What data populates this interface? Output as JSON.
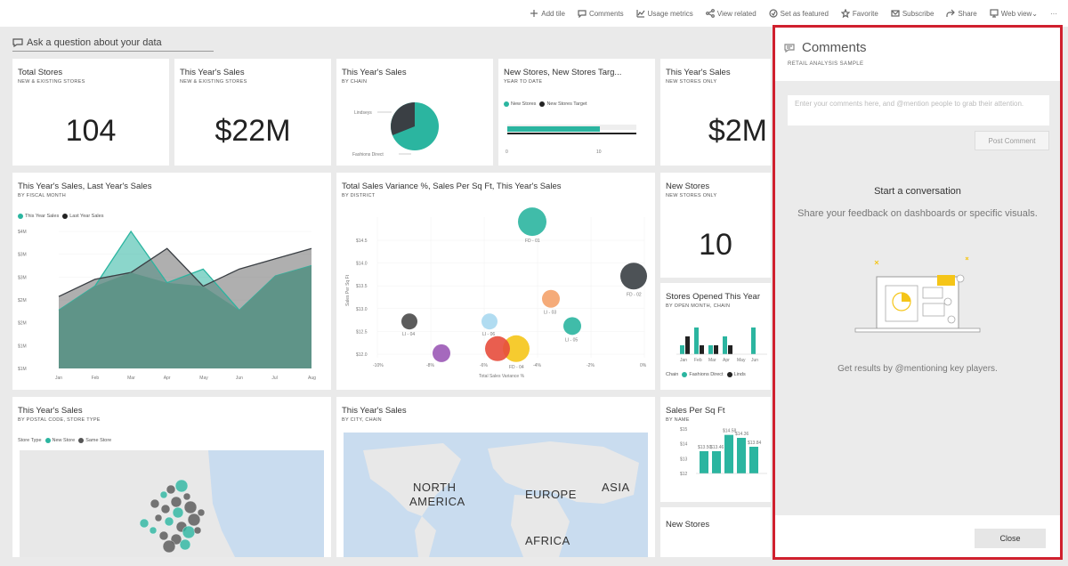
{
  "topbar": {
    "items": [
      {
        "label": "Add tile",
        "icon": "plus-icon"
      },
      {
        "label": "Comments",
        "icon": "comment-icon"
      },
      {
        "label": "Usage metrics",
        "icon": "chart-icon"
      },
      {
        "label": "View related",
        "icon": "share-nodes-icon"
      },
      {
        "label": "Set as featured",
        "icon": "feature-icon"
      },
      {
        "label": "Favorite",
        "icon": "star-icon"
      },
      {
        "label": "Subscribe",
        "icon": "mail-icon"
      },
      {
        "label": "Share",
        "icon": "share-icon"
      },
      {
        "label": "Web view",
        "icon": "monitor-icon"
      }
    ],
    "more": "···"
  },
  "qa": {
    "label": "Ask a question about your data"
  },
  "tiles": {
    "total_stores": {
      "title": "Total Stores",
      "subtitle": "NEW & EXISTING STORES",
      "value": "104"
    },
    "tys_new_existing": {
      "title": "This Year's Sales",
      "subtitle": "NEW & EXISTING STORES",
      "value": "$22M"
    },
    "tys_chain": {
      "title": "This Year's Sales",
      "subtitle": "BY CHAIN",
      "label_a": "Lindseys",
      "label_b": "Fashions Direct"
    },
    "new_stores_target": {
      "title": "New Stores, New Stores Targ...",
      "subtitle": "YEAR TO DATE",
      "legend_a": "New Stores",
      "legend_b": "New Stores Target",
      "tick0": "0",
      "tick1": "10"
    },
    "tys_new_only": {
      "title": "This Year's Sales",
      "subtitle": "NEW STORES ONLY",
      "value": "$2M"
    },
    "area": {
      "title": "This Year's Sales, Last Year's Sales",
      "subtitle": "BY FISCAL MONTH",
      "legend_a": "This Year Sales",
      "legend_b": "Last Year Sales"
    },
    "scatter": {
      "title": "Total Sales Variance %, Sales Per Sq Ft, This Year's Sales",
      "subtitle": "BY DISTRICT",
      "xlabel": "Total Sales Variance %",
      "ylabel": "Sales Per Sq Ft"
    },
    "new_stores": {
      "title": "New Stores",
      "subtitle": "NEW STORES ONLY",
      "value": "10"
    },
    "opened": {
      "title": "Stores Opened This Year",
      "subtitle": "BY OPEN MONTH, CHAIN",
      "legend_prefix": "Chain",
      "legend_a": "Fashions Direct",
      "legend_b": "Linds"
    },
    "postal": {
      "title": "This Year's Sales",
      "subtitle": "BY POSTAL CODE, STORE TYPE",
      "legend_prefix": "Store Type",
      "legend_a": "New Store",
      "legend_b": "Same Store"
    },
    "city": {
      "title": "This Year's Sales",
      "subtitle": "BY CITY, CHAIN",
      "na": "NORTH",
      "na2": "AMERICA",
      "eu": "EUROPE",
      "as": "ASIA",
      "af": "AFRICA"
    },
    "sqft": {
      "title": "Sales Per Sq Ft",
      "subtitle": "BY NAME"
    },
    "new_stores_2": {
      "title": "New Stores"
    }
  },
  "comments": {
    "title": "Comments",
    "subtitle": "RETAIL ANALYSIS SAMPLE",
    "placeholder": "Enter your comments here, and @mention people to grab their attention.",
    "post": "Post Comment",
    "start": "Start a conversation",
    "share": "Share your feedback on dashboards or specific visuals.",
    "get": "Get results by @mentioning key players.",
    "close": "Close"
  },
  "colors": {
    "teal": "#2bb5a0",
    "dark": "#3a3f44",
    "gray": "#8c8c8c",
    "red_border": "#d0202e",
    "map_water": "#c9dcef",
    "map_land": "#e8e8e8"
  },
  "chart_data": [
    {
      "type": "area",
      "title": "This Year's Sales, Last Year's Sales",
      "categories": [
        "Jan",
        "Feb",
        "Mar",
        "Apr",
        "May",
        "Jun",
        "Jul",
        "Aug"
      ],
      "series": [
        {
          "name": "This Year Sales",
          "values": [
            2.2,
            2.9,
            4.5,
            3.0,
            3.4,
            2.2,
            3.2,
            3.5
          ]
        },
        {
          "name": "Last Year Sales",
          "values": [
            2.6,
            3.1,
            3.3,
            4.0,
            2.9,
            3.4,
            3.7,
            4.0
          ]
        }
      ],
      "yticks": [
        "$4M",
        "$3M",
        "$3M",
        "$2M",
        "$2M",
        "$1M",
        "$1M"
      ],
      "ylim": [
        0.5,
        4.5
      ]
    },
    {
      "type": "scatter",
      "title": "Total Sales Variance %, Sales Per Sq Ft, This Year's Sales",
      "xticks": [
        "-10%",
        "-8%",
        "-6%",
        "-4%",
        "-2%",
        "0%"
      ],
      "yticks": [
        "$14.5",
        "$14.0",
        "$13.5",
        "$13.0",
        "$12.5",
        "$12.0"
      ],
      "points": [
        {
          "label": "FD - 01",
          "x": -4.2,
          "y": 14.8,
          "size": 16,
          "color": "#2bb5a0"
        },
        {
          "label": "FD - 02",
          "x": -0.4,
          "y": 13.6,
          "size": 15,
          "color": "#3a3f44"
        },
        {
          "label": "LI - 03",
          "x": -3.5,
          "y": 13.1,
          "size": 10,
          "color": "#f4a26a"
        },
        {
          "label": "LI - 04",
          "x": -8.8,
          "y": 12.6,
          "size": 9,
          "color": "#4a4a4a"
        },
        {
          "label": "LI - 05",
          "x": -2.7,
          "y": 12.5,
          "size": 10,
          "color": "#2bb5a0"
        },
        {
          "label": "LI - 06",
          "x": -5.8,
          "y": 12.6,
          "size": 9,
          "color": "#a8d8f0"
        },
        {
          "label": "FD - 04",
          "x": -4.8,
          "y": 12.0,
          "size": 15,
          "color": "#f5c518"
        },
        {
          "label": "",
          "x": -5.5,
          "y": 12.0,
          "size": 14,
          "color": "#e74c3c"
        },
        {
          "label": "",
          "x": -7.6,
          "y": 11.9,
          "size": 10,
          "color": "#9b59b6"
        }
      ]
    },
    {
      "type": "bar",
      "title": "Stores Opened This Year",
      "categories": [
        "Jan",
        "Feb",
        "Mar",
        "Apr",
        "May",
        "Jun"
      ],
      "series": [
        {
          "name": "Fashions Direct",
          "values": [
            1,
            3,
            1,
            2,
            0,
            3
          ]
        },
        {
          "name": "Lindseys",
          "values": [
            2,
            1,
            1,
            1,
            0,
            0
          ]
        }
      ]
    },
    {
      "type": "bar",
      "title": "Sales Per Sq Ft",
      "categories": [
        "",
        "",
        "",
        "",
        ""
      ],
      "values": [
        13.5,
        13.5,
        14.6,
        14.4,
        13.8
      ],
      "labels": [
        "$13.50",
        "$13.46",
        "$14.58",
        "$14.36",
        "$13.84"
      ],
      "yticks": [
        "$15",
        "$14",
        "$13",
        "$12"
      ]
    },
    {
      "type": "pie",
      "title": "This Year's Sales",
      "slices": [
        {
          "name": "Lindseys",
          "value": 28
        },
        {
          "name": "Fashions Direct",
          "value": 72
        }
      ]
    },
    {
      "type": "bar",
      "title": "New Stores, New Stores Targ...",
      "series": [
        {
          "name": "New Stores",
          "values": [
            10
          ]
        },
        {
          "name": "New Stores Target",
          "values": [
            14
          ]
        }
      ],
      "xticks": [
        "0",
        "10"
      ]
    }
  ]
}
